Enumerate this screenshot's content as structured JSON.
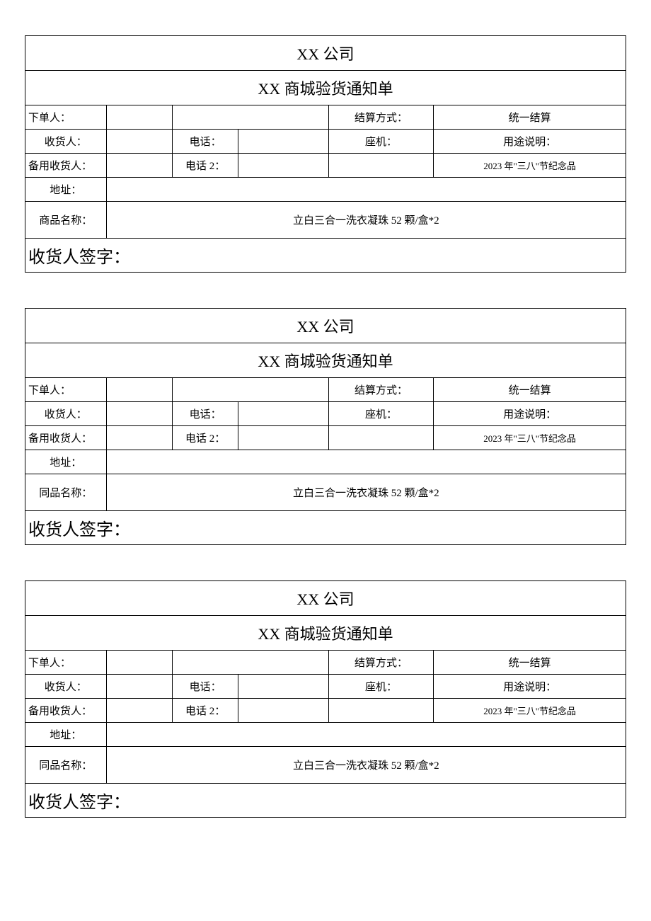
{
  "forms": [
    {
      "company": "XX 公司",
      "title": "XX 商城验货通知单",
      "orderer_label": "下单人：",
      "orderer_value": "",
      "settlement_label": "结算方式：",
      "settlement_value": "统一结算",
      "receiver_label": "收货人：",
      "receiver_value": "",
      "phone_label": "电话：",
      "phone_value": "",
      "landline_label": "座机：",
      "landline_value": "",
      "usage_label": "用途说明：",
      "backup_receiver_label": "备用收货人：",
      "backup_receiver_value": "",
      "phone2_label": "电话 2：",
      "phone2_value": "",
      "usage_value": "2023 年\"三八\"节纪念品",
      "address_label": "地址：",
      "address_value": "",
      "product_label": "商品名称：",
      "product_value": "立白三合一洗衣凝珠 52 颗/盒*2",
      "signature_label": "收货人签字："
    },
    {
      "company": "XX 公司",
      "title": "XX 商城验货通知单",
      "orderer_label": "下单人：",
      "orderer_value": "",
      "settlement_label": "结算方式：",
      "settlement_value": "统一结算",
      "receiver_label": "收货人：",
      "receiver_value": "",
      "phone_label": "电话：",
      "phone_value": "",
      "landline_label": "座机：",
      "landline_value": "",
      "usage_label": "用途说明：",
      "backup_receiver_label": "备用收货人：",
      "backup_receiver_value": "",
      "phone2_label": "电话 2：",
      "phone2_value": "",
      "usage_value": "2023 年\"三八\"节纪念品",
      "address_label": "地址：",
      "address_value": "",
      "product_label": "同品名称：",
      "product_value": "立白三合一洗衣凝珠 52 颗/盒*2",
      "signature_label": "收货人签字："
    },
    {
      "company": "XX 公司",
      "title": "XX 商城验货通知单",
      "orderer_label": "下单人：",
      "orderer_value": "",
      "settlement_label": "结算方式：",
      "settlement_value": "统一结算",
      "receiver_label": "收货人：",
      "receiver_value": "",
      "phone_label": "电话：",
      "phone_value": "",
      "landline_label": "座机：",
      "landline_value": "",
      "usage_label": "用途说明：",
      "backup_receiver_label": "备用收货人：",
      "backup_receiver_value": "",
      "phone2_label": "电话 2：",
      "phone2_value": "",
      "usage_value": "2023 年\"三八\"节纪念品",
      "address_label": "地址：",
      "address_value": "",
      "product_label": "同品名称：",
      "product_value": "立白三合一洗衣凝珠 52 颗/盒*2",
      "signature_label": "收货人签字："
    }
  ]
}
